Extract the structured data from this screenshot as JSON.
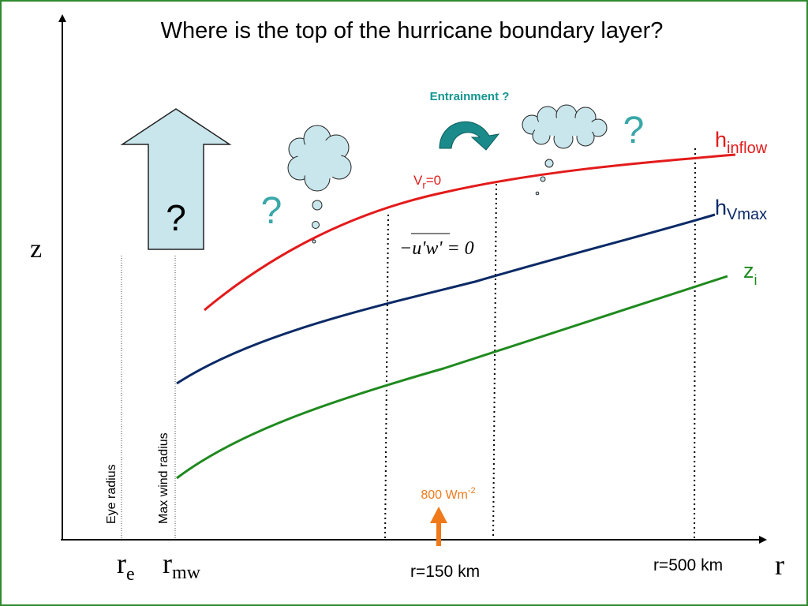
{
  "title": "Where is the top of the hurricane boundary layer?",
  "axes": {
    "y_label": "z",
    "x_label": "r",
    "tick_labels": [
      {
        "main": "r",
        "sub": "e"
      },
      {
        "main": "r",
        "sub": "mw"
      }
    ],
    "distance_labels": [
      "r=150 km",
      "r=500 km"
    ]
  },
  "vertical_labels": {
    "eye_radius": "Eye radius",
    "max_wind_radius": "Max wind radius"
  },
  "curves": {
    "h_inflow": {
      "main": "h",
      "sub": "inflow",
      "color": "#e31b1b"
    },
    "h_vmax": {
      "main": "h",
      "sub": "Vmax",
      "color": "#0b2a66"
    },
    "z_i": {
      "main": "z",
      "sub": "i",
      "color": "#1f8a1f"
    }
  },
  "annotations": {
    "vr_zero": {
      "main": "V",
      "sub": "r",
      "rest": "=0"
    },
    "stress_equation": "−u'w' = 0",
    "entrainment": "Entrainment ?",
    "question_mark": "?",
    "heat_flux": {
      "main": "800 Wm",
      "sup": "-2",
      "color": "#f07a1a"
    }
  },
  "colors": {
    "border": "#2e8b2e",
    "question_teal": "#3aa7a7",
    "entrainment_teal": "#14968f",
    "cloud_fill": "#c8e6ec",
    "arrow_fill": "#c8e6ec",
    "swirl_fill": "#1a8a8a"
  },
  "icons": [
    "up-arrow-icon",
    "cloud-icon",
    "curved-arrow-icon",
    "orange-up-arrow-icon"
  ]
}
